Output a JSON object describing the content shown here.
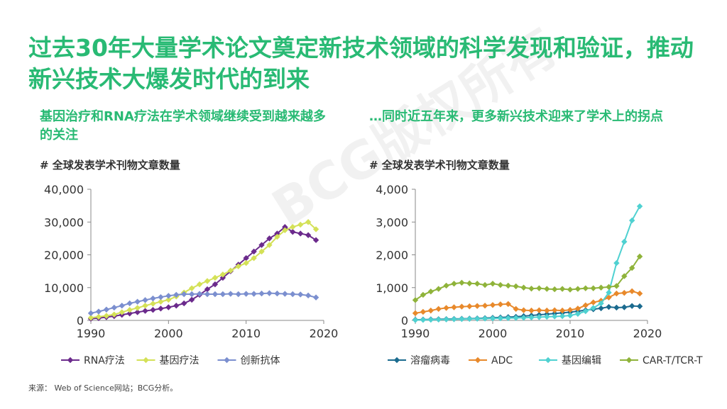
{
  "page": {
    "title": "过去30年大量学术论文奠定新技术领域的科学发现和验证，推动新兴技术大爆发时代的到来",
    "watermark": "BCG版权所有",
    "source": "来源： Web of Science网站；BCG分析。"
  },
  "left": {
    "subtitle": "基因治疗和RNA疗法在学术领域继续受到越来越多的关注",
    "axis_title": "# 全球发表学术刊物文章数量"
  },
  "right": {
    "subtitle": "…同时近五年来，更多新兴技术迎来了学术上的拐点",
    "axis_title": "# 全球发表学术刊物文章数量"
  },
  "chart_data": [
    {
      "type": "line",
      "title": "# 全球发表学术刊物文章数量",
      "xlabel": "",
      "ylabel": "",
      "xlim": [
        1990,
        2020
      ],
      "ylim": [
        0,
        40000
      ],
      "xticks": [
        1990,
        2000,
        2010,
        2020
      ],
      "yticks": [
        0,
        10000,
        20000,
        30000,
        40000
      ],
      "ytick_labels": [
        "0",
        "10,000",
        "20,000",
        "30,000",
        "40,000"
      ],
      "grid": false,
      "legend": "bottom",
      "x": [
        1990,
        1991,
        1992,
        1993,
        1994,
        1995,
        1996,
        1997,
        1998,
        1999,
        2000,
        2001,
        2002,
        2003,
        2004,
        2005,
        2006,
        2007,
        2008,
        2009,
        2010,
        2011,
        2012,
        2013,
        2014,
        2015,
        2016,
        2017,
        2018,
        2019
      ],
      "series": [
        {
          "name": "RNA疗法",
          "color": "#6b2a8c",
          "values": [
            500,
            700,
            1000,
            1300,
            1700,
            2100,
            2500,
            2900,
            3200,
            3600,
            4000,
            4500,
            5200,
            6300,
            7800,
            9500,
            11000,
            13000,
            15000,
            17000,
            19000,
            21000,
            23000,
            25000,
            26500,
            28500,
            27000,
            26500,
            26000,
            24500
          ]
        },
        {
          "name": "基因疗法",
          "color": "#d4e157",
          "values": [
            800,
            1100,
            1400,
            1800,
            2500,
            3200,
            3800,
            4500,
            5100,
            5700,
            6300,
            7300,
            8500,
            9800,
            11000,
            12000,
            13000,
            14000,
            15200,
            16500,
            17500,
            19000,
            21000,
            23000,
            25500,
            27500,
            28500,
            29200,
            30000,
            27800
          ]
        },
        {
          "name": "创新抗体",
          "color": "#7b8fcf",
          "values": [
            2200,
            2700,
            3300,
            3900,
            4500,
            5200,
            5700,
            6200,
            6700,
            7100,
            7500,
            7800,
            8000,
            8000,
            8100,
            8000,
            8000,
            8000,
            8100,
            8000,
            8100,
            8100,
            8200,
            8300,
            8200,
            8100,
            8000,
            7900,
            7600,
            7000
          ]
        }
      ]
    },
    {
      "type": "line",
      "title": "# 全球发表学术刊物文章数量",
      "xlabel": "",
      "ylabel": "",
      "xlim": [
        1990,
        2020
      ],
      "ylim": [
        0,
        4000
      ],
      "xticks": [
        1990,
        2000,
        2010,
        2020
      ],
      "yticks": [
        0,
        1000,
        2000,
        3000,
        4000
      ],
      "ytick_labels": [
        "0",
        "1,000",
        "2,000",
        "3,000",
        "4,000"
      ],
      "grid": false,
      "legend": "bottom",
      "x": [
        1990,
        1991,
        1992,
        1993,
        1994,
        1995,
        1996,
        1997,
        1998,
        1999,
        2000,
        2001,
        2002,
        2003,
        2004,
        2005,
        2006,
        2007,
        2008,
        2009,
        2010,
        2011,
        2012,
        2013,
        2014,
        2015,
        2016,
        2017,
        2018,
        2019
      ],
      "series": [
        {
          "name": "溶瘤病毒",
          "color": "#1b6b8f",
          "values": [
            20,
            25,
            30,
            35,
            40,
            45,
            50,
            55,
            60,
            70,
            80,
            90,
            100,
            110,
            130,
            150,
            170,
            190,
            210,
            230,
            250,
            280,
            310,
            340,
            370,
            410,
            390,
            400,
            440,
            430
          ]
        },
        {
          "name": "ADC",
          "color": "#e8892b",
          "values": [
            220,
            260,
            300,
            350,
            380,
            400,
            420,
            430,
            440,
            450,
            470,
            490,
            500,
            350,
            310,
            300,
            310,
            300,
            310,
            300,
            320,
            360,
            460,
            550,
            600,
            700,
            820,
            840,
            890,
            820
          ]
        },
        {
          "name": "基因编辑",
          "color": "#4fd1d1",
          "values": [
            10,
            15,
            20,
            25,
            30,
            35,
            40,
            45,
            50,
            55,
            60,
            65,
            70,
            75,
            80,
            90,
            100,
            110,
            120,
            130,
            150,
            200,
            280,
            380,
            520,
            850,
            1750,
            2400,
            3050,
            3480
          ]
        },
        {
          "name": "CAR-T/TCR-T",
          "color": "#8fb33a",
          "values": [
            620,
            780,
            880,
            960,
            1060,
            1120,
            1150,
            1130,
            1120,
            1080,
            1120,
            1080,
            1060,
            1040,
            1000,
            970,
            980,
            960,
            950,
            960,
            940,
            960,
            980,
            980,
            1000,
            1020,
            1050,
            1350,
            1600,
            1950
          ]
        }
      ]
    }
  ]
}
